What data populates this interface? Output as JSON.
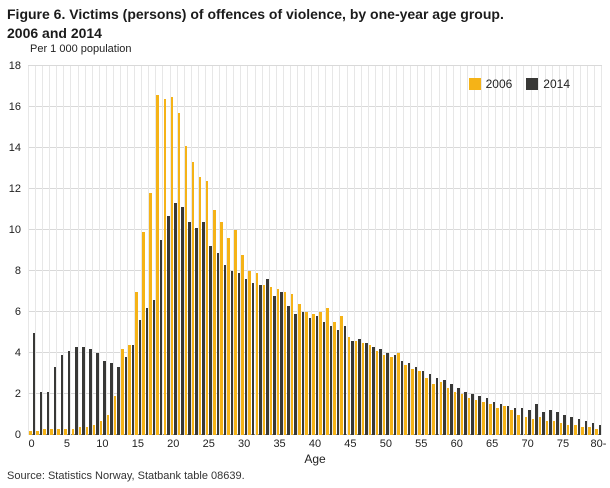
{
  "title": {
    "line1": "Figure 6. Victims (persons) of offences of violence, by one-year age group.",
    "line2": "2006 and 2014"
  },
  "source": "Source: Statistics Norway, Statbank table 08639.",
  "chart_data": {
    "type": "bar",
    "title": "Figure 6. Victims (persons) of offences of violence, by one-year age group. 2006 and 2014",
    "ylabel": "Per 1 000 population",
    "xlabel": "Age",
    "ylim": [
      0,
      18
    ],
    "grid": "on",
    "legend_position": "top-right-inside",
    "legend": [
      "2006",
      "2014"
    ],
    "y_ticks": [
      0,
      2,
      4,
      6,
      8,
      10,
      12,
      14,
      16,
      18
    ],
    "x_tick_positions": [
      0,
      5,
      10,
      15,
      20,
      25,
      30,
      35,
      40,
      45,
      50,
      55,
      60,
      65,
      70,
      75,
      80
    ],
    "x_tick_labels": [
      "0",
      "5",
      "10",
      "15",
      "20",
      "25",
      "30",
      "35",
      "40",
      "45",
      "50",
      "55",
      "60",
      "65",
      "70",
      "75",
      "80-"
    ],
    "ages": [
      0,
      1,
      2,
      3,
      4,
      5,
      6,
      7,
      8,
      9,
      10,
      11,
      12,
      13,
      14,
      15,
      16,
      17,
      18,
      19,
      20,
      21,
      22,
      23,
      24,
      25,
      26,
      27,
      28,
      29,
      30,
      31,
      32,
      33,
      34,
      35,
      36,
      37,
      38,
      39,
      40,
      41,
      42,
      43,
      44,
      45,
      46,
      47,
      48,
      49,
      50,
      51,
      52,
      53,
      54,
      55,
      56,
      57,
      58,
      59,
      60,
      61,
      62,
      63,
      64,
      65,
      66,
      67,
      68,
      69,
      70,
      71,
      72,
      73,
      74,
      75,
      76,
      77,
      78,
      79,
      80
    ],
    "series": [
      {
        "name": "2006",
        "color": "#F5B317",
        "values": [
          0.2,
          0.2,
          0.3,
          0.3,
          0.3,
          0.3,
          0.3,
          0.4,
          0.4,
          0.5,
          0.7,
          1.0,
          1.9,
          4.2,
          4.4,
          7.0,
          9.9,
          11.8,
          16.6,
          16.4,
          16.5,
          15.7,
          14.1,
          13.3,
          12.6,
          12.4,
          11.0,
          10.4,
          9.6,
          10.0,
          8.8,
          8.0,
          7.9,
          7.3,
          7.2,
          7.1,
          7.0,
          6.9,
          6.4,
          6.0,
          5.9,
          6.0,
          6.2,
          5.5,
          5.8,
          4.8,
          4.6,
          4.5,
          4.4,
          4.1,
          3.9,
          3.8,
          4.0,
          3.4,
          3.2,
          3.1,
          2.8,
          2.5,
          2.6,
          2.3,
          2.1,
          2.0,
          1.8,
          1.7,
          1.6,
          1.5,
          1.3,
          1.4,
          1.2,
          1.0,
          0.9,
          0.8,
          0.9,
          0.7,
          0.7,
          0.6,
          0.5,
          0.5,
          0.4,
          0.4,
          0.3
        ]
      },
      {
        "name": "2014",
        "color": "#383836",
        "values": [
          5.0,
          2.1,
          2.1,
          3.3,
          3.9,
          4.1,
          4.3,
          4.3,
          4.2,
          4.0,
          3.6,
          3.5,
          3.3,
          3.8,
          4.4,
          5.6,
          6.2,
          6.6,
          9.5,
          10.7,
          11.3,
          11.1,
          10.4,
          10.1,
          10.4,
          9.2,
          8.9,
          8.3,
          8.0,
          7.9,
          7.6,
          7.4,
          7.3,
          7.6,
          6.8,
          7.0,
          6.3,
          5.9,
          6.0,
          5.7,
          5.8,
          5.5,
          5.3,
          5.1,
          5.3,
          4.6,
          4.7,
          4.5,
          4.3,
          4.2,
          4.0,
          3.9,
          3.6,
          3.5,
          3.3,
          3.1,
          3.0,
          2.8,
          2.7,
          2.5,
          2.3,
          2.1,
          2.0,
          1.9,
          1.8,
          1.6,
          1.5,
          1.4,
          1.3,
          1.3,
          1.2,
          1.5,
          1.1,
          1.2,
          1.1,
          1.0,
          0.9,
          0.8,
          0.7,
          0.6,
          0.5
        ]
      }
    ]
  }
}
